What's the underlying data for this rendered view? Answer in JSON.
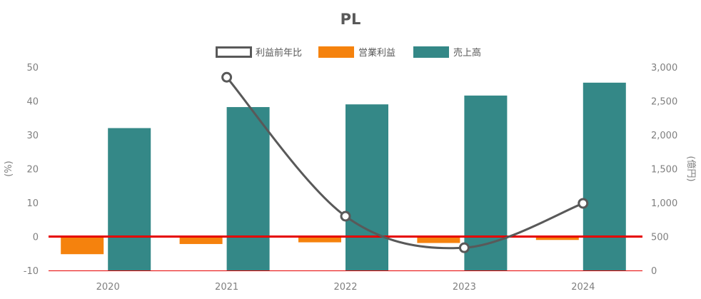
{
  "chart_data": {
    "type": "bar",
    "title": "PL",
    "categories": [
      "2020",
      "2021",
      "2022",
      "2023",
      "2024"
    ],
    "legend_position": "top",
    "legend": [
      {
        "name": "利益前年比",
        "kind": "line",
        "color": "#595959"
      },
      {
        "name": "営業利益",
        "kind": "bar",
        "color": "#f5820d"
      },
      {
        "name": "売上高",
        "kind": "bar",
        "color": "#348887"
      }
    ],
    "series": [
      {
        "name": "営業利益",
        "type": "bar",
        "axis": "left",
        "color": "#f5820d",
        "values": [
          -5.2,
          -2.2,
          -1.7,
          -1.9,
          -1.0
        ]
      },
      {
        "name": "売上高",
        "type": "bar",
        "axis": "right",
        "color": "#348887",
        "values": [
          2100,
          2410,
          2450,
          2580,
          2770
        ]
      },
      {
        "name": "利益前年比",
        "type": "line",
        "axis": "left",
        "color": "#595959",
        "values": [
          null,
          47,
          6,
          -3.3,
          9.8
        ]
      }
    ],
    "y_left": {
      "label": "(%)",
      "ylim": [
        -10,
        50
      ],
      "ticks": [
        50,
        40,
        30,
        20,
        10,
        0,
        -10
      ]
    },
    "y_right": {
      "label": "(億円)",
      "ylim": [
        0,
        3000
      ],
      "ticks": [
        "3,000",
        "2,500",
        "2,000",
        "1,500",
        "1,000",
        "500",
        "0"
      ]
    },
    "reference_line": {
      "axis": "left",
      "value": 0,
      "color": "#e60000"
    },
    "grid": false
  }
}
